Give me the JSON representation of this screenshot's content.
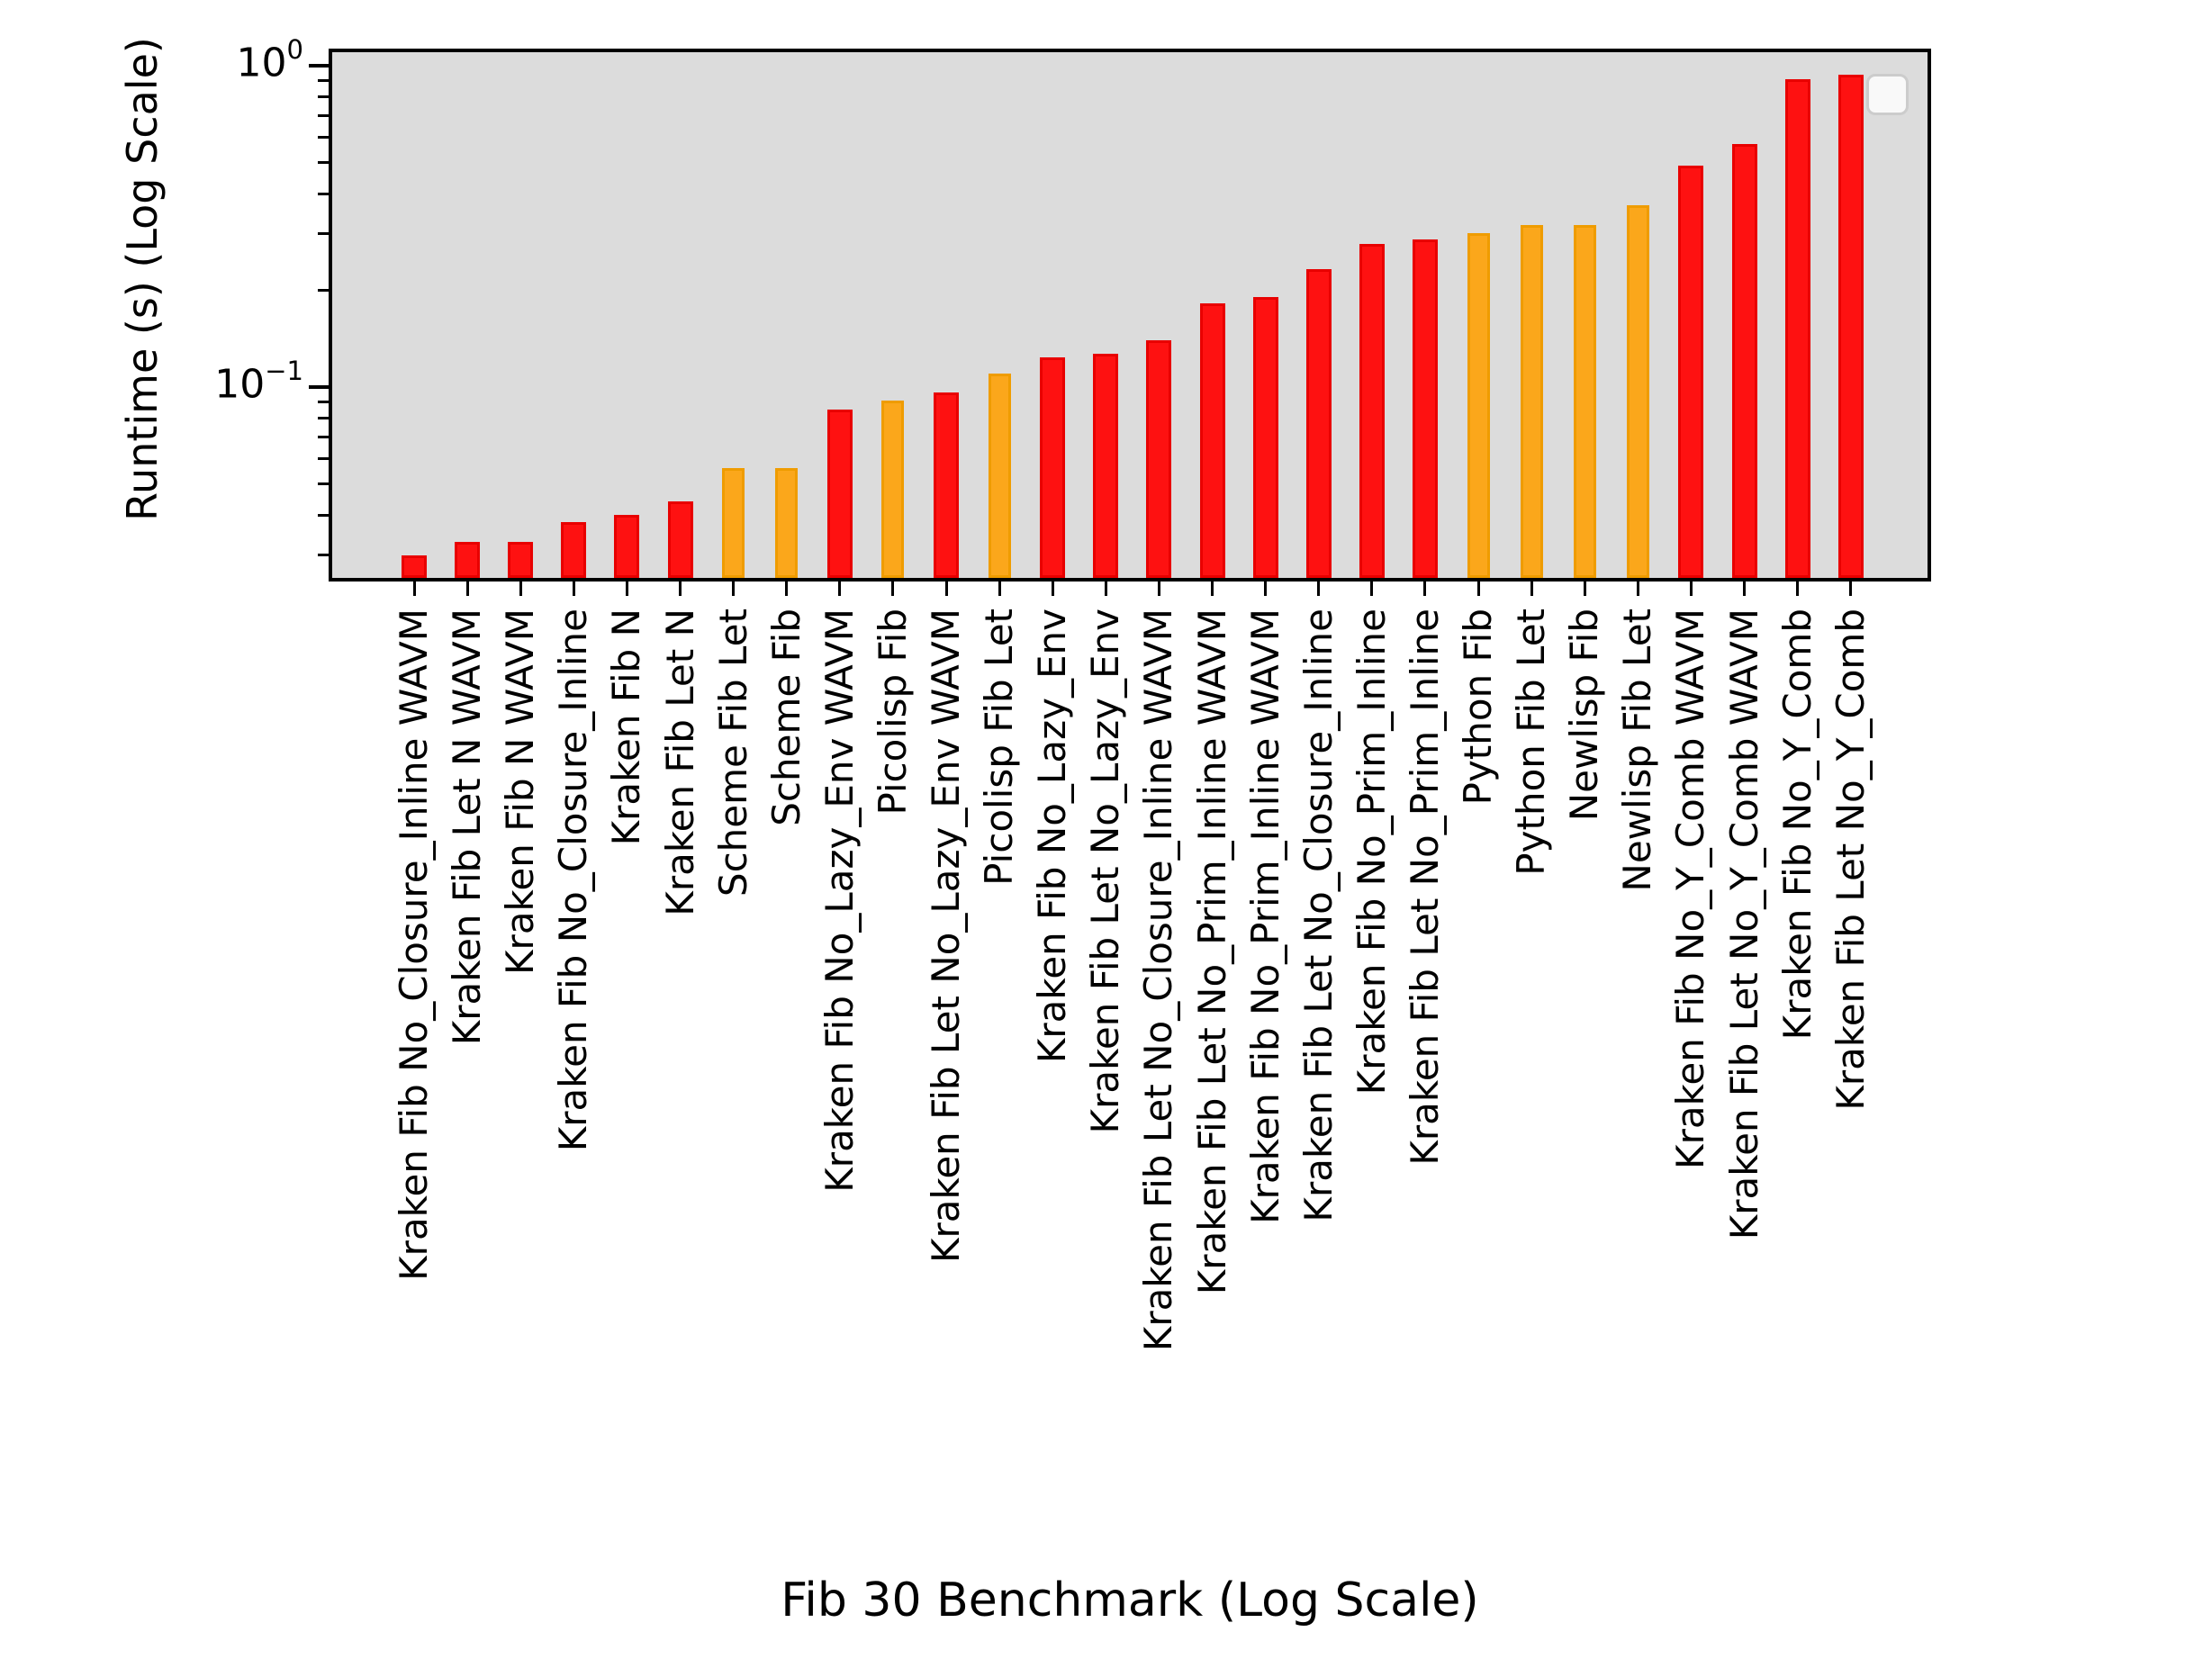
{
  "chart_data": {
    "type": "bar",
    "title": "",
    "xlabel": "Fib 30 Benchmark (Log Scale)",
    "ylabel": "Runtime (s) (Log Scale)",
    "y_scale": "log",
    "ylim": [
      0.025,
      1.1
    ],
    "grid": false,
    "plot_bg": "#dcdcdc",
    "legend": {
      "visible": true,
      "entries": [],
      "position": "upper-right"
    },
    "y_major_ticks": [
      {
        "value": 1.0,
        "base": "10",
        "exponent": "0"
      },
      {
        "value": 0.1,
        "base": "10",
        "exponent": "−1"
      }
    ],
    "y_minor_tick_values": [
      0.9,
      0.8,
      0.7,
      0.6,
      0.5,
      0.4,
      0.3,
      0.2,
      0.09,
      0.08,
      0.07,
      0.06,
      0.05,
      0.04,
      0.03
    ],
    "categories": [
      "Kraken Fib No_Closure_Inline WAVM",
      "Kraken Fib Let N WAVM",
      "Kraken Fib N WAVM",
      "Kraken Fib No_Closure_Inline",
      "Kraken Fib N",
      "Kraken Fib Let N",
      "Scheme Fib Let",
      "Scheme Fib",
      "Kraken Fib No_Lazy_Env WAVM",
      "Picolisp Fib",
      "Kraken Fib Let No_Lazy_Env WAVM",
      "Picolisp Fib Let",
      "Kraken Fib No_Lazy_Env",
      "Kraken Fib Let No_Lazy_Env",
      "Kraken Fib Let No_Closure_Inline WAVM",
      "Kraken Fib Let No_Prim_Inline WAVM",
      "Kraken Fib No_Prim_Inline WAVM",
      "Kraken Fib Let No_Closure_Inline",
      "Kraken Fib No_Prim_Inline",
      "Kraken Fib Let No_Prim_Inline",
      "Python Fib",
      "Python Fib Let",
      "Newlisp Fib",
      "Newlisp Fib Let",
      "Kraken Fib No_Y_Comb WAVM",
      "Kraken Fib Let No_Y_Comb WAVM",
      "Kraken Fib No_Y_Comb",
      "Kraken Fib Let No_Y_Comb"
    ],
    "values": [
      0.03,
      0.033,
      0.033,
      0.038,
      0.04,
      0.044,
      0.056,
      0.056,
      0.085,
      0.091,
      0.096,
      0.11,
      0.124,
      0.127,
      0.14,
      0.182,
      0.19,
      0.233,
      0.279,
      0.288,
      0.301,
      0.319,
      0.32,
      0.368,
      0.49,
      0.57,
      0.91,
      0.94
    ],
    "bar_colors": [
      "kraken",
      "kraken",
      "kraken",
      "kraken",
      "kraken",
      "kraken",
      "other",
      "other",
      "kraken",
      "other",
      "kraken",
      "other",
      "kraken",
      "kraken",
      "kraken",
      "kraken",
      "kraken",
      "kraken",
      "kraken",
      "kraken",
      "other",
      "other",
      "other",
      "other",
      "kraken",
      "kraken",
      "kraken",
      "kraken"
    ],
    "palette": {
      "kraken": "#fe1111",
      "kraken_edge": "#e80000",
      "other": "#fba71b",
      "other_edge": "#ef9c00"
    }
  }
}
